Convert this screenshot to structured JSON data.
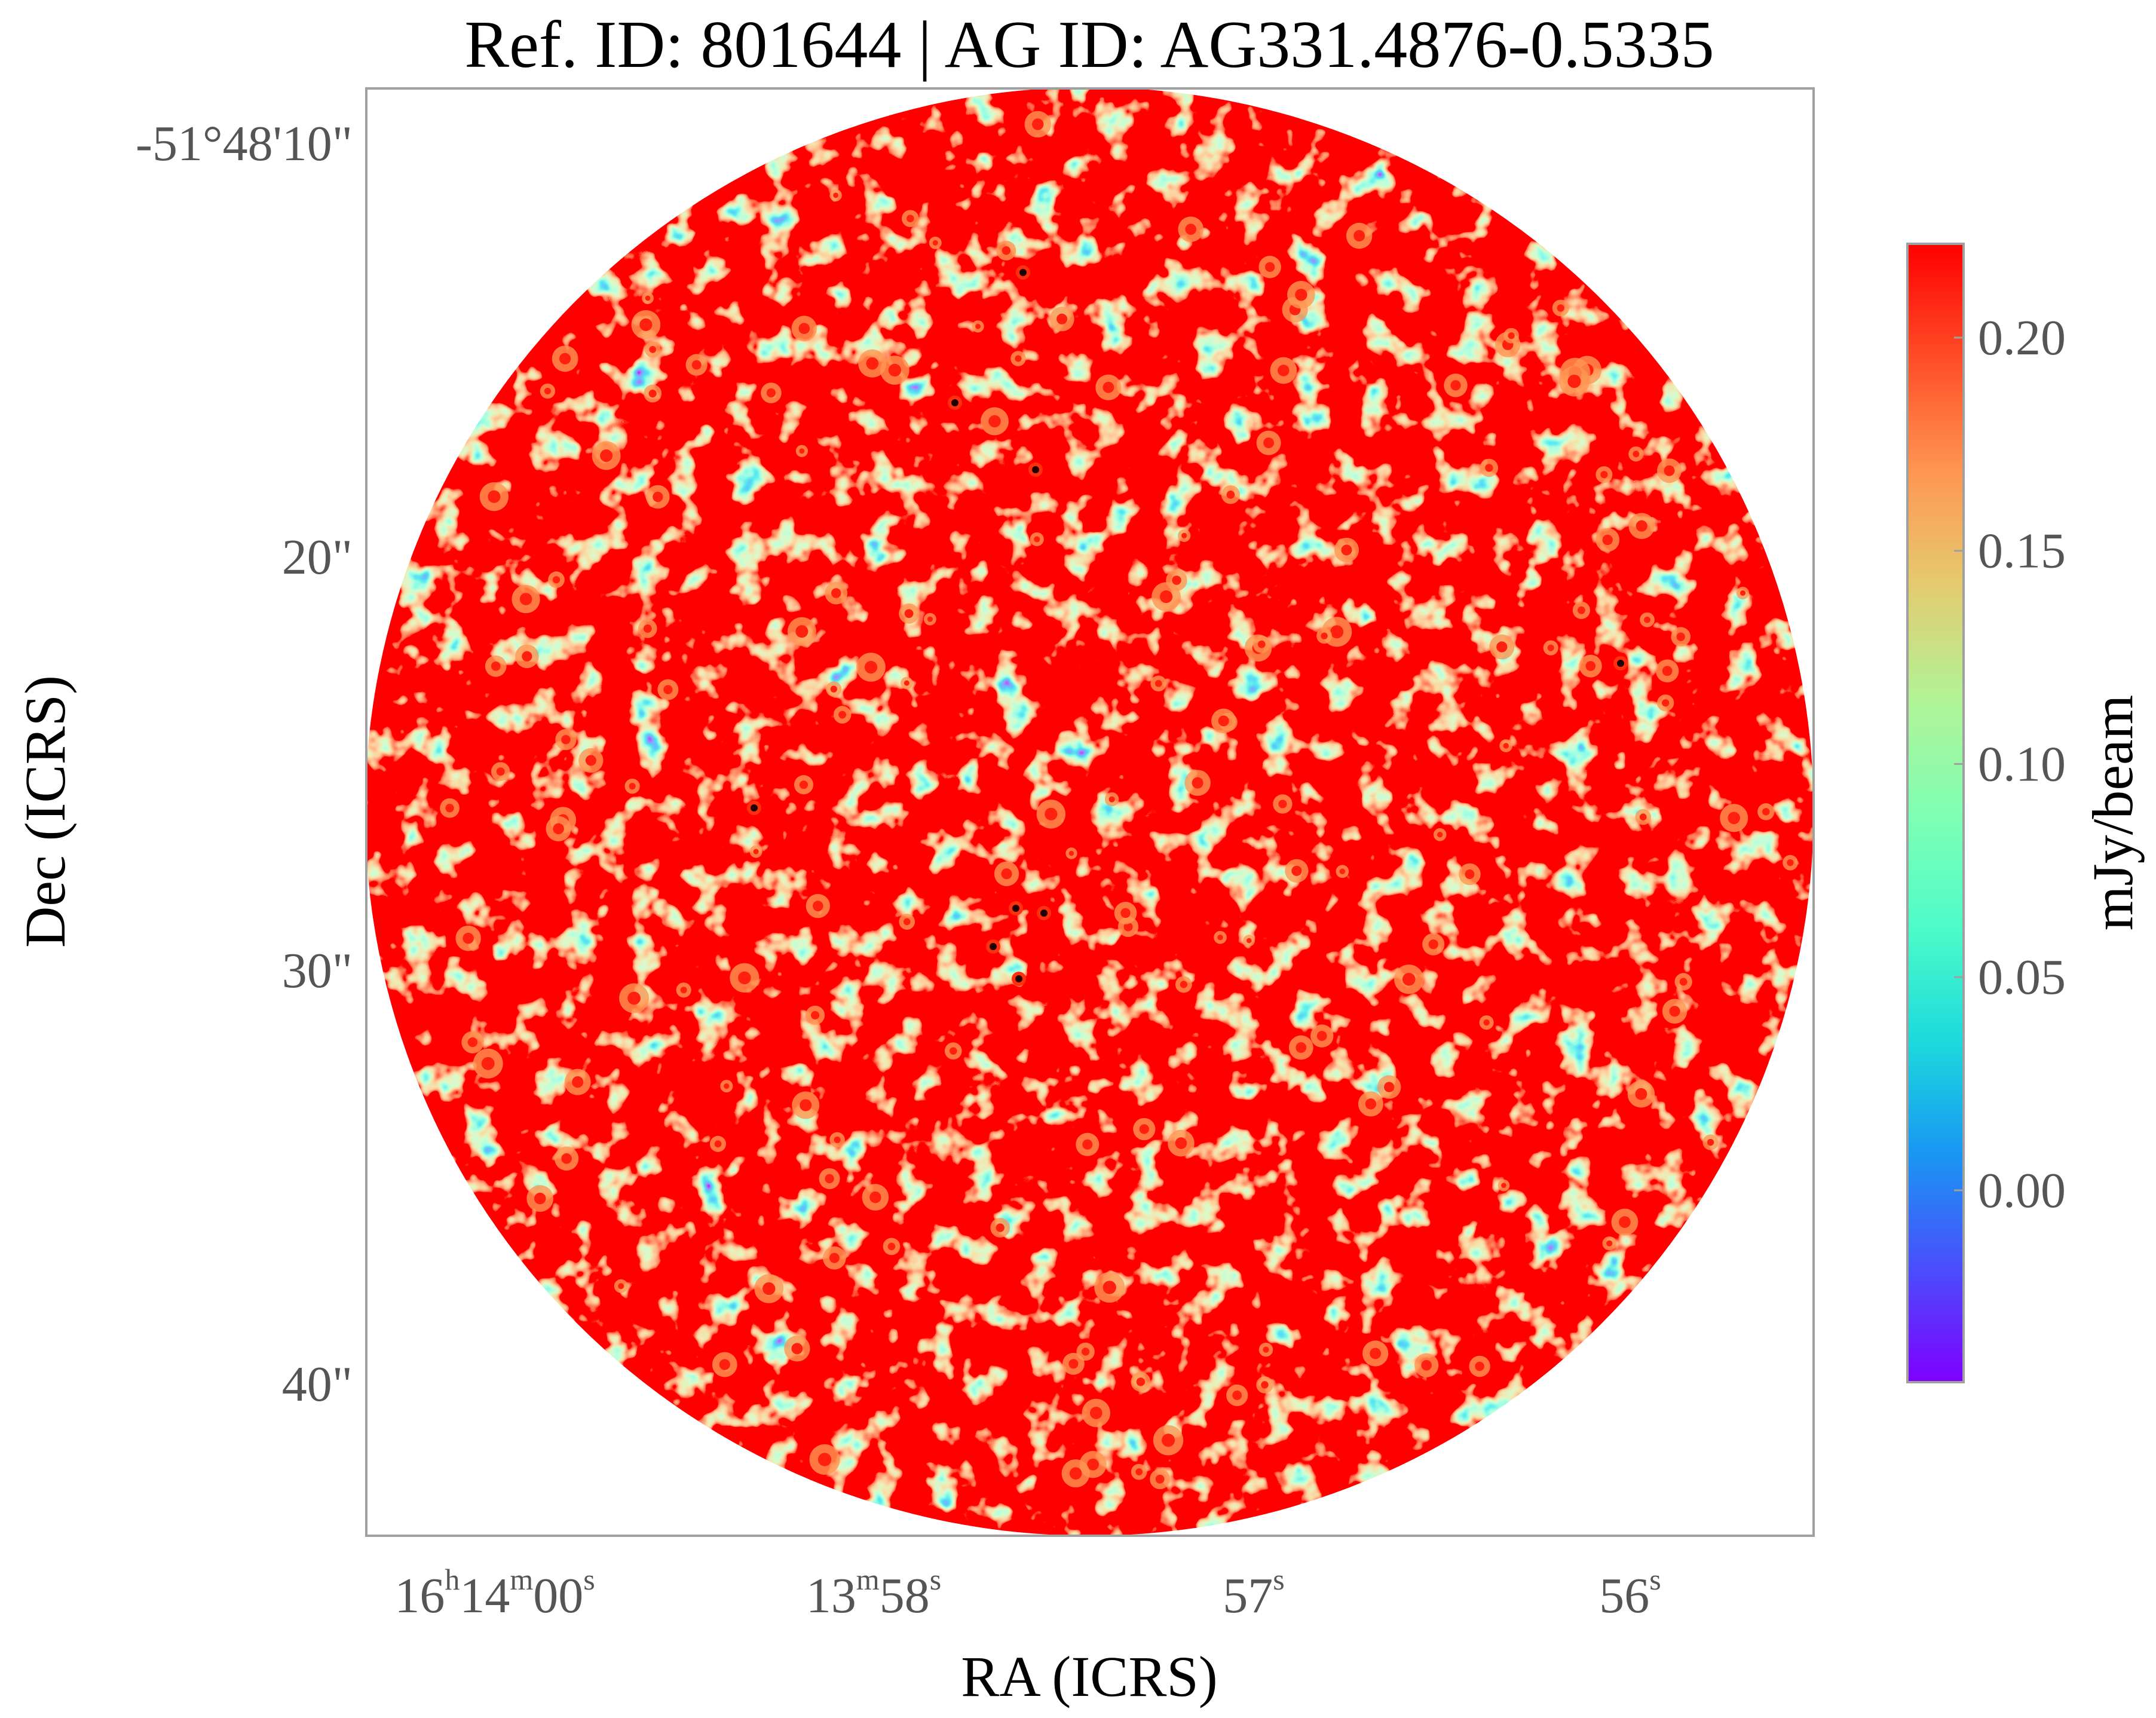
{
  "chart_data": {
    "type": "heatmap",
    "title": "Ref. ID: 801644 | AG ID: AG331.4876-0.5335",
    "xlabel": "RA (ICRS)",
    "ylabel": "Dec (ICRS)",
    "x_ticks": [
      {
        "h": "16",
        "hs": "h",
        "m": "14",
        "ms": "m",
        "s": "00",
        "ss": "s"
      },
      {
        "m": "13",
        "ms": "m",
        "s": "58",
        "ss": "s"
      },
      {
        "s": "57",
        "ss": "s"
      },
      {
        "s": "56",
        "ss": "s"
      }
    ],
    "y_ticks": [
      "-51°48'10\"",
      "20\"",
      "30\"",
      "40\""
    ],
    "colorbar": {
      "label": "mJy/beam",
      "ticks": [
        "0.20",
        "0.15",
        "0.10",
        "0.05",
        "0.00"
      ],
      "range": [
        -0.045,
        0.222
      ],
      "colormap": "rainbow",
      "colors": [
        "#7f00ff",
        "#4a4efb",
        "#1996f3",
        "#1cdadc",
        "#4efcc8",
        "#80ffb4",
        "#b2f396",
        "#e4cb70",
        "#ff9652",
        "#ff4d27",
        "#ff0000"
      ]
    },
    "map": {
      "shape": "circular field of view",
      "background": "#ffffff"
    }
  }
}
